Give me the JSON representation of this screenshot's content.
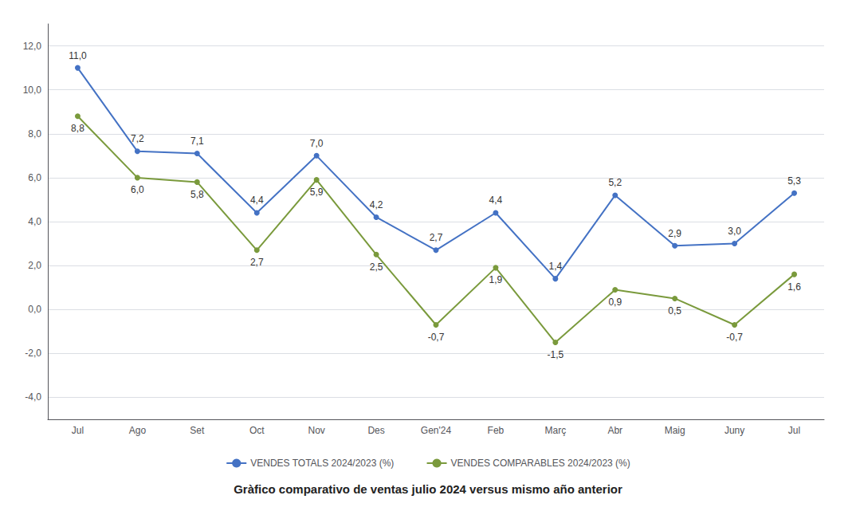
{
  "chart_data": {
    "type": "line",
    "title": "Gràfico comparativo de ventas julio 2024 versus mismo año anterior",
    "categories": [
      "Jul",
      "Ago",
      "Set",
      "Oct",
      "Nov",
      "Des",
      "Gen'24",
      "Feb",
      "Març",
      "Abr",
      "Maig",
      "Juny",
      "Jul"
    ],
    "series": [
      {
        "name": "VENDES TOTALS 2024/2023 (%)",
        "color": "#4472C4",
        "marker": "circle",
        "values": [
          11.0,
          7.2,
          7.1,
          4.4,
          7.0,
          4.2,
          2.7,
          4.4,
          1.4,
          5.2,
          2.9,
          3.0,
          5.3
        ],
        "value_labels": [
          "11,0",
          "7,2",
          "7,1",
          "4,4",
          "7,0",
          "4,2",
          "2,7",
          "4,4",
          "1,4",
          "5,2",
          "2,9",
          "3,0",
          "5,3"
        ]
      },
      {
        "name": "VENDES COMPARABLES 2024/2023 (%)",
        "color": "#7A9A3C",
        "marker": "circle",
        "values": [
          8.8,
          6.0,
          5.8,
          2.7,
          5.9,
          2.5,
          -0.7,
          1.9,
          -1.5,
          0.9,
          0.5,
          -0.7,
          1.6
        ],
        "value_labels": [
          "8,8",
          "6,0",
          "5,8",
          "2,7",
          "5,9",
          "2,5",
          "-0,7",
          "1,9",
          "-1,5",
          "0,9",
          "0,5",
          "-0,7",
          "1,6"
        ]
      }
    ],
    "ylim": [
      -5.0,
      13.0
    ],
    "yticks": [
      {
        "value": -4.0,
        "label": "-4,0"
      },
      {
        "value": -2.0,
        "label": "-2,0"
      },
      {
        "value": 0.0,
        "label": "0,0"
      },
      {
        "value": 2.0,
        "label": "2,0"
      },
      {
        "value": 4.0,
        "label": "4,0"
      },
      {
        "value": 6.0,
        "label": "6,0"
      },
      {
        "value": 8.0,
        "label": "8,0"
      },
      {
        "value": 10.0,
        "label": "10,0"
      },
      {
        "value": 12.0,
        "label": "12,0"
      }
    ],
    "grid": true,
    "legend": "bottom",
    "data_labels": true
  }
}
